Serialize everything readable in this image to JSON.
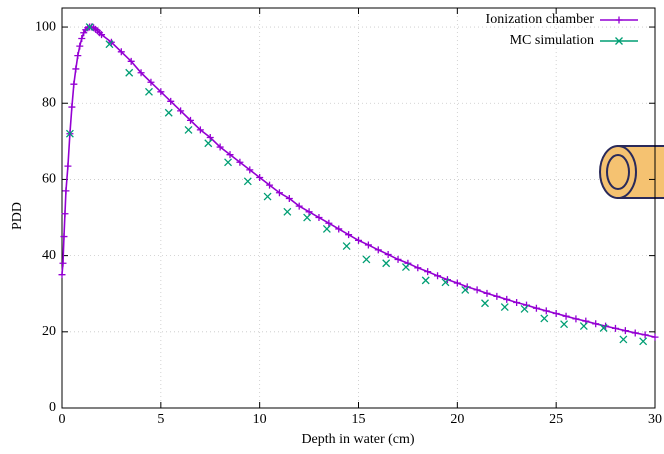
{
  "chart_data": {
    "type": "line",
    "xlabel": "Depth in water (cm)",
    "ylabel": "PDD",
    "xlim": [
      0,
      30
    ],
    "xticks": [
      0,
      5,
      10,
      15,
      20,
      25,
      30
    ],
    "ylim": [
      0,
      105
    ],
    "yticks": [
      0,
      20,
      40,
      60,
      80,
      100
    ],
    "grid": true,
    "legend": "top-right",
    "series": [
      {
        "name": "Ionization chamber",
        "color": "#9400d3",
        "style": "linespoints",
        "marker": "plus",
        "x": [
          0,
          0.05,
          0.1,
          0.15,
          0.2,
          0.3,
          0.4,
          0.5,
          0.6,
          0.7,
          0.8,
          0.9,
          1.0,
          1.1,
          1.2,
          1.3,
          1.4,
          1.5,
          1.6,
          1.7,
          1.8,
          1.9,
          2.0,
          2.5,
          3.0,
          3.5,
          4.0,
          4.5,
          5.0,
          5.5,
          6.0,
          6.5,
          7.0,
          7.5,
          8.0,
          8.5,
          9.0,
          9.5,
          10.0,
          10.5,
          11.0,
          11.5,
          12.0,
          12.5,
          13.0,
          13.5,
          14.0,
          14.5,
          15.0,
          15.5,
          16.0,
          16.5,
          17.0,
          17.5,
          18.0,
          18.5,
          19.0,
          19.5,
          20.0,
          20.5,
          21.0,
          21.5,
          22.0,
          22.5,
          23.0,
          23.5,
          24.0,
          24.5,
          25.0,
          25.5,
          26.0,
          26.5,
          27.0,
          27.5,
          28.0,
          28.5,
          29.0,
          29.5,
          30.0
        ],
        "values": [
          35,
          38,
          45,
          51,
          57,
          63.5,
          72,
          79,
          85,
          89,
          92.5,
          95,
          97,
          98.5,
          99.3,
          99.8,
          100,
          100,
          99.8,
          99.4,
          99,
          98.5,
          98,
          96,
          93.5,
          91,
          88,
          85.5,
          83,
          80.5,
          78,
          75.5,
          73,
          71,
          68.5,
          66.5,
          64.5,
          62.5,
          60.5,
          58.5,
          56.5,
          55,
          53,
          51.5,
          50,
          48.5,
          47,
          45.5,
          44,
          42.8,
          41.5,
          40.3,
          39,
          38,
          36.8,
          35.8,
          34.7,
          33.7,
          32.8,
          31.8,
          31,
          30.1,
          29.3,
          28.5,
          27.7,
          27,
          26.2,
          25.5,
          24.8,
          24.1,
          23.4,
          22.8,
          22.1,
          21.5,
          20.9,
          20.3,
          19.7,
          19.2,
          18.6
        ]
      },
      {
        "name": "MC simulation",
        "color": "#009e73",
        "style": "points",
        "marker": "cross",
        "x": [
          0.4,
          1.4,
          2.4,
          3.4,
          4.4,
          5.4,
          6.4,
          7.4,
          8.4,
          9.4,
          10.4,
          11.4,
          12.4,
          13.4,
          14.4,
          15.4,
          16.4,
          17.4,
          18.4,
          19.4,
          20.4,
          21.4,
          22.4,
          23.4,
          24.4,
          25.4,
          26.4,
          27.4,
          28.4,
          29.4
        ],
        "values": [
          72,
          100,
          95.5,
          88,
          83,
          77.5,
          73,
          69.5,
          64.5,
          59.5,
          55.5,
          51.5,
          50,
          47,
          42.5,
          39,
          38,
          37,
          33.5,
          33,
          31,
          27.5,
          26.5,
          26,
          23.5,
          22,
          21.5,
          21,
          18,
          17.5
        ]
      }
    ]
  }
}
